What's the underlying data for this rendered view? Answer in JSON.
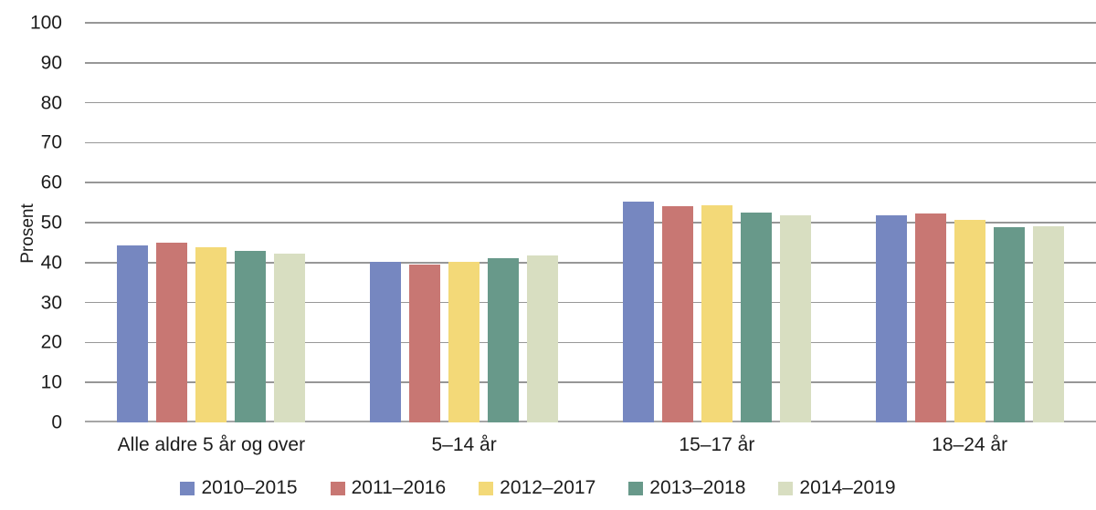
{
  "chart_data": {
    "type": "bar",
    "title": "",
    "xlabel": "",
    "ylabel": "Prosent",
    "ylim": [
      0,
      100
    ],
    "yticks": [
      0,
      10,
      20,
      30,
      40,
      50,
      60,
      70,
      80,
      90,
      100
    ],
    "grid": true,
    "legend_position": "bottom",
    "categories": [
      "Alle aldre 5 år og over",
      "5–14 år",
      "15–17 år",
      "18–24 år"
    ],
    "series": [
      {
        "name": "2010–2015",
        "color": "#7687c0",
        "values": [
          44.4,
          40.1,
          55.2,
          51.9
        ]
      },
      {
        "name": "2011–2016",
        "color": "#c87773",
        "values": [
          44.9,
          39.6,
          54.0,
          52.3
        ]
      },
      {
        "name": "2012–2017",
        "color": "#f3d978",
        "values": [
          43.9,
          40.2,
          54.4,
          50.8
        ]
      },
      {
        "name": "2013–2018",
        "color": "#68998a",
        "values": [
          42.9,
          41.0,
          52.5,
          48.8
        ]
      },
      {
        "name": "2014–2019",
        "color": "#d8dec1",
        "values": [
          42.3,
          41.7,
          51.8,
          49.0
        ]
      }
    ]
  }
}
